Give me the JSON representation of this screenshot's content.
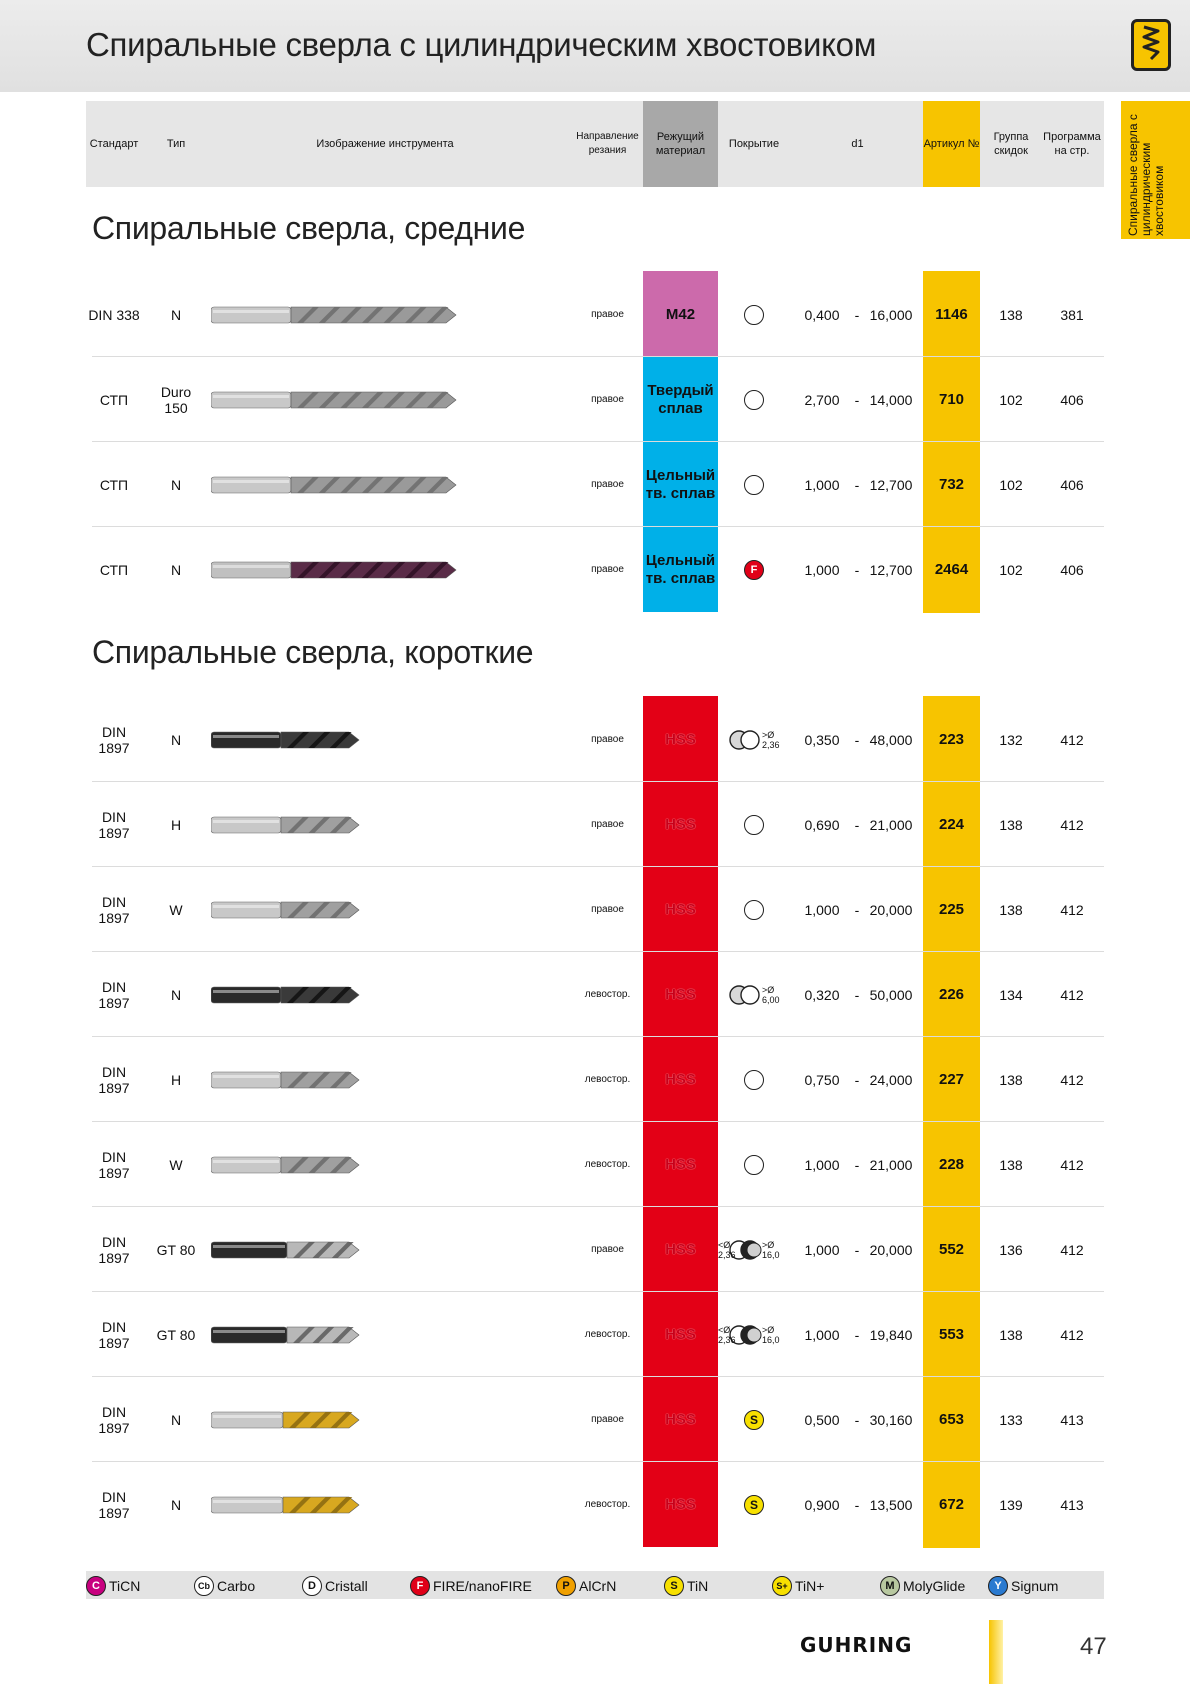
{
  "page": {
    "title": "Спиральные сверла с цилиндрическим хвостовиком",
    "side_tab": "Спиральные сверла с цилиндрическим хвостовиком",
    "page_number": "47",
    "brand": "GUHRING"
  },
  "columns": {
    "standard": "Стандарт",
    "type": "Тип",
    "image": "Изображение инструмента",
    "direction": "Направление резания",
    "material": "Режущий материал",
    "coating": "Покрытие",
    "d1": "d1",
    "article": "Артикул №",
    "discount": "Группа скидок",
    "program": "Программа на стр."
  },
  "sections": [
    {
      "title": "Спиральные сверла, средние",
      "rows": [
        {
          "standard": "DIN 338",
          "type": "N",
          "direction": "правое",
          "material": "M42",
          "material_color": "#cc6aab",
          "coating": "circle",
          "d1_from": "0,400",
          "d1_to": "16,000",
          "article": "1146",
          "discount": "138",
          "program": "381",
          "drill": "silver-long"
        },
        {
          "standard": "СТП",
          "type": "Duro 150",
          "direction": "правое",
          "material": "Твердый сплав",
          "material_color": "#00b0e8",
          "coating": "circle",
          "d1_from": "2,700",
          "d1_to": "14,000",
          "article": "710",
          "discount": "102",
          "program": "406",
          "drill": "silver-long"
        },
        {
          "standard": "СТП",
          "type": "N",
          "direction": "правое",
          "material": "Цельный тв. сплав",
          "material_color": "#00b0e8",
          "coating": "circle",
          "d1_from": "1,000",
          "d1_to": "12,700",
          "article": "732",
          "discount": "102",
          "program": "406",
          "drill": "silver-long"
        },
        {
          "standard": "СТП",
          "type": "N",
          "direction": "правое",
          "material": "Цельный тв. сплав",
          "material_color": "#00b0e8",
          "coating": "fire",
          "coating_label": "F",
          "d1_from": "1,000",
          "d1_to": "12,700",
          "article": "2464",
          "discount": "102",
          "program": "406",
          "drill": "purple-long"
        }
      ]
    },
    {
      "title": "Спиральные сверла, короткие",
      "rows": [
        {
          "standard": "DIN 1897",
          "type": "N",
          "direction": "правое",
          "material": "HSS",
          "material_color": "#e30016",
          "coating": "grad1",
          "coating_label": ">Ø 2,36",
          "d1_from": "0,350",
          "d1_to": "48,000",
          "article": "223",
          "discount": "132",
          "program": "412",
          "drill": "black-short"
        },
        {
          "standard": "DIN 1897",
          "type": "H",
          "direction": "правое",
          "material": "HSS",
          "material_color": "#e30016",
          "coating": "circle",
          "d1_from": "0,690",
          "d1_to": "21,000",
          "article": "224",
          "discount": "138",
          "program": "412",
          "drill": "silver-short"
        },
        {
          "standard": "DIN 1897",
          "type": "W",
          "direction": "правое",
          "material": "HSS",
          "material_color": "#e30016",
          "coating": "circle",
          "d1_from": "1,000",
          "d1_to": "20,000",
          "article": "225",
          "discount": "138",
          "program": "412",
          "drill": "silver-short"
        },
        {
          "standard": "DIN 1897",
          "type": "N",
          "direction": "левостор.",
          "material": "HSS",
          "material_color": "#e30016",
          "coating": "grad1",
          "coating_label": ">Ø 6,00",
          "d1_from": "0,320",
          "d1_to": "50,000",
          "article": "226",
          "discount": "134",
          "program": "412",
          "drill": "black-short"
        },
        {
          "standard": "DIN 1897",
          "type": "H",
          "direction": "левостор.",
          "material": "HSS",
          "material_color": "#e30016",
          "coating": "circle",
          "d1_from": "0,750",
          "d1_to": "24,000",
          "article": "227",
          "discount": "138",
          "program": "412",
          "drill": "silver-short"
        },
        {
          "standard": "DIN 1897",
          "type": "W",
          "direction": "левостор.",
          "material": "HSS",
          "material_color": "#e30016",
          "coating": "circle",
          "d1_from": "1,000",
          "d1_to": "21,000",
          "article": "228",
          "discount": "138",
          "program": "412",
          "drill": "silver-short"
        },
        {
          "standard": "DIN 1897",
          "type": "GT 80",
          "direction": "правое",
          "material": "HSS",
          "material_color": "#e30016",
          "coating": "grad2",
          "coating_label_left": "<Ø 2,36",
          "coating_label": ">Ø 16,0",
          "d1_from": "1,000",
          "d1_to": "20,000",
          "article": "552",
          "discount": "136",
          "program": "412",
          "drill": "darkmix-short"
        },
        {
          "standard": "DIN 1897",
          "type": "GT 80",
          "direction": "левостор.",
          "material": "HSS",
          "material_color": "#e30016",
          "coating": "grad2",
          "coating_label_left": "<Ø 2,36",
          "coating_label": ">Ø 16,0",
          "d1_from": "1,000",
          "d1_to": "19,840",
          "article": "553",
          "discount": "138",
          "program": "412",
          "drill": "darkmix-short"
        },
        {
          "standard": "DIN 1897",
          "type": "N",
          "direction": "правое",
          "material": "HSS",
          "material_color": "#e30016",
          "coating": "tin",
          "coating_label": "S",
          "d1_from": "0,500",
          "d1_to": "30,160",
          "article": "653",
          "discount": "133",
          "program": "413",
          "drill": "gold-short"
        },
        {
          "standard": "DIN 1897",
          "type": "N",
          "direction": "левостор.",
          "material": "HSS",
          "material_color": "#e30016",
          "coating": "tin",
          "coating_label": "S",
          "d1_from": "0,900",
          "d1_to": "13,500",
          "article": "672",
          "discount": "139",
          "program": "413",
          "drill": "gold-short"
        }
      ]
    }
  ],
  "range_dash": "-",
  "legend": [
    {
      "letter": "C",
      "label": "TiCN",
      "color": "#c8007f",
      "text_color": "#fff"
    },
    {
      "letter": "Cb",
      "label": "Carbo",
      "color": "#ffffff",
      "text_color": "#111"
    },
    {
      "letter": "D",
      "label": "Cristall",
      "color": "#ffffff",
      "text_color": "#111"
    },
    {
      "letter": "F",
      "label": "FIRE/nanoFIRE",
      "color": "#e00018",
      "text_color": "#fff"
    },
    {
      "letter": "P",
      "label": "AlCrN",
      "color": "#f0a000",
      "text_color": "#111"
    },
    {
      "letter": "S",
      "label": "TiN",
      "color": "#f7e000",
      "text_color": "#111"
    },
    {
      "letter": "S+",
      "label": "TiN+",
      "color": "#f7e000",
      "text_color": "#111"
    },
    {
      "letter": "M",
      "label": "MolyGlide",
      "color": "#b8c8a0",
      "text_color": "#111"
    },
    {
      "letter": "Y",
      "label": "Signum",
      "color": "#2a7ad0",
      "text_color": "#fff"
    }
  ]
}
